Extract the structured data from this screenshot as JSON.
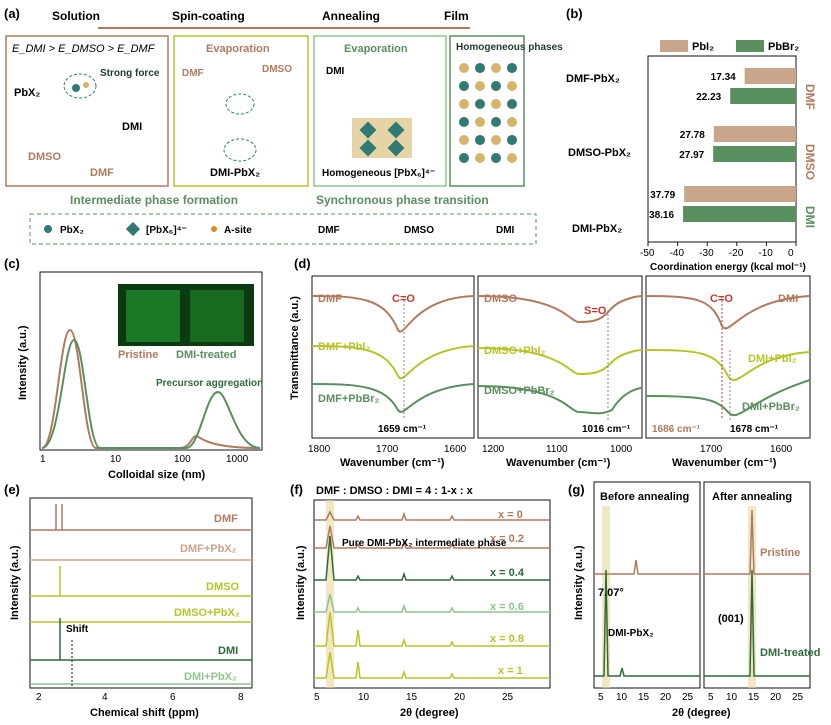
{
  "colors": {
    "brown": "#b07a5e",
    "green": "#5a8f5f",
    "lime": "#b8c32a",
    "lightgreen": "#8fc48f",
    "gold": "#d6b56a",
    "teal": "#2f7a73",
    "dark": "#1f3b2f"
  },
  "panel_a": {
    "label": "(a)",
    "stages": [
      "Solution",
      "Spin-coating",
      "Annealing",
      "Film"
    ],
    "energy_order": "E_DMI > E_DMSO > E_DMF",
    "box1": {
      "pbx2": "PbX₂",
      "strong_force": "Strong force",
      "dmi": "DMI",
      "dmso": "DMSO",
      "dmf": "DMF"
    },
    "box2": {
      "title": "Evaporation",
      "dmf": "DMF",
      "dmso": "DMSO",
      "complex": "DMI-PbX₂"
    },
    "box3": {
      "title": "Evaporation",
      "dmi": "DMI",
      "homog": "Homogeneous [PbX₆]⁴⁻"
    },
    "box4": {
      "title": "Homogeneous phases"
    },
    "bottom_left": "Intermediate phase formation",
    "bottom_right": "Synchronous phase transition",
    "legend": [
      "PbX₂",
      "[PbX₆]⁴⁻",
      "A-site",
      "DMF",
      "DMSO",
      "DMI"
    ]
  },
  "panel_b": {
    "label": "(b)",
    "legend": [
      "PbI₂",
      "PbBr₂"
    ],
    "complexes": [
      "DMF-PbX₂",
      "DMSO-PbX₂",
      "DMI-PbX₂"
    ],
    "side_labels": [
      "DMF",
      "DMSO",
      "DMI"
    ],
    "xlabel": "Coordination energy (kcal mol⁻¹)",
    "xticks": [
      "-50",
      "-40",
      "-30",
      "-20",
      "-10",
      "0"
    ]
  },
  "panel_c": {
    "label": "(c)",
    "xlabel": "Colloidal size (nm)",
    "ylabel": "Intensity (a.u.)",
    "xticks": [
      "1",
      "10",
      "100",
      "1000"
    ],
    "annotation": "Precursor aggregation",
    "photo_labels": [
      "Pristine",
      "DMI-treated"
    ]
  },
  "panel_d": {
    "label": "(d)",
    "ylabel": "Transmittance (a.u.)",
    "xlabel": "Wavenumber (cm⁻¹)",
    "sub1": {
      "traces": [
        "DMF",
        "DMF+PbI₂",
        "DMF+PbBr₂"
      ],
      "bond": "C=O",
      "peak": "1659 cm⁻¹",
      "xticks": [
        "1800",
        "1700",
        "1600"
      ]
    },
    "sub2": {
      "traces": [
        "DMSO",
        "DMSO+PbI₂",
        "DMSO+PbBr₂"
      ],
      "bond": "S=O",
      "peak": "1016 cm⁻¹",
      "xticks": [
        "1200",
        "1100",
        "1000"
      ]
    },
    "sub3": {
      "traces": [
        "DMI",
        "DMI+PbI₂",
        "DMI+PbBr₂"
      ],
      "bond": "C=O",
      "peak1": "1686 cm⁻¹",
      "peak2": "1678 cm⁻¹",
      "xticks": [
        "1700",
        "1600"
      ]
    }
  },
  "panel_e": {
    "label": "(e)",
    "xlabel": "Chemical shift (ppm)",
    "ylabel": "Intensity (a.u.)",
    "xticks": [
      "2",
      "4",
      "6",
      "8"
    ],
    "traces": [
      "DMF",
      "DMF+PbX₂",
      "DMSO",
      "DMSO+PbX₂",
      "DMI",
      "DMI+PbX₂"
    ],
    "shift": "Shift"
  },
  "panel_f": {
    "label": "(f)",
    "title": "DMF : DMSO : DMI = 4 : 1-x : x",
    "xlabel": "2θ (degree)",
    "ylabel": "Intensity (a.u.)",
    "xticks": [
      "5",
      "10",
      "15",
      "20",
      "25"
    ],
    "traces": [
      "x = 0",
      "x = 0.2",
      "x = 0.4",
      "x = 0.6",
      "x = 0.8",
      "x = 1"
    ],
    "annotation": "Pure DMI-PbX₂ intermediate phase"
  },
  "panel_g": {
    "label": "(g)",
    "xlabel": "2θ (degree)",
    "ylabel": "Intensity (a.u.)",
    "left_title": "Before annealing",
    "right_title": "After annealing",
    "xticks": [
      "5",
      "10",
      "15",
      "20",
      "25"
    ],
    "angle": "7.07°",
    "dmi_label": "DMI-PbX₂",
    "hkl": "(001)",
    "pristine": "Pristine",
    "treated": "DMI-treated"
  },
  "chart_data": [
    {
      "type": "bar",
      "panel": "b",
      "categories": [
        "DMF-PbX₂",
        "DMSO-PbX₂",
        "DMI-PbX₂"
      ],
      "series": [
        {
          "name": "PbI₂",
          "values": [
            -17.34,
            -27.78,
            -37.79
          ]
        },
        {
          "name": "PbBr₂",
          "values": [
            -22.23,
            -27.97,
            -38.16
          ]
        }
      ],
      "xlim": [
        -50,
        0
      ]
    }
  ]
}
